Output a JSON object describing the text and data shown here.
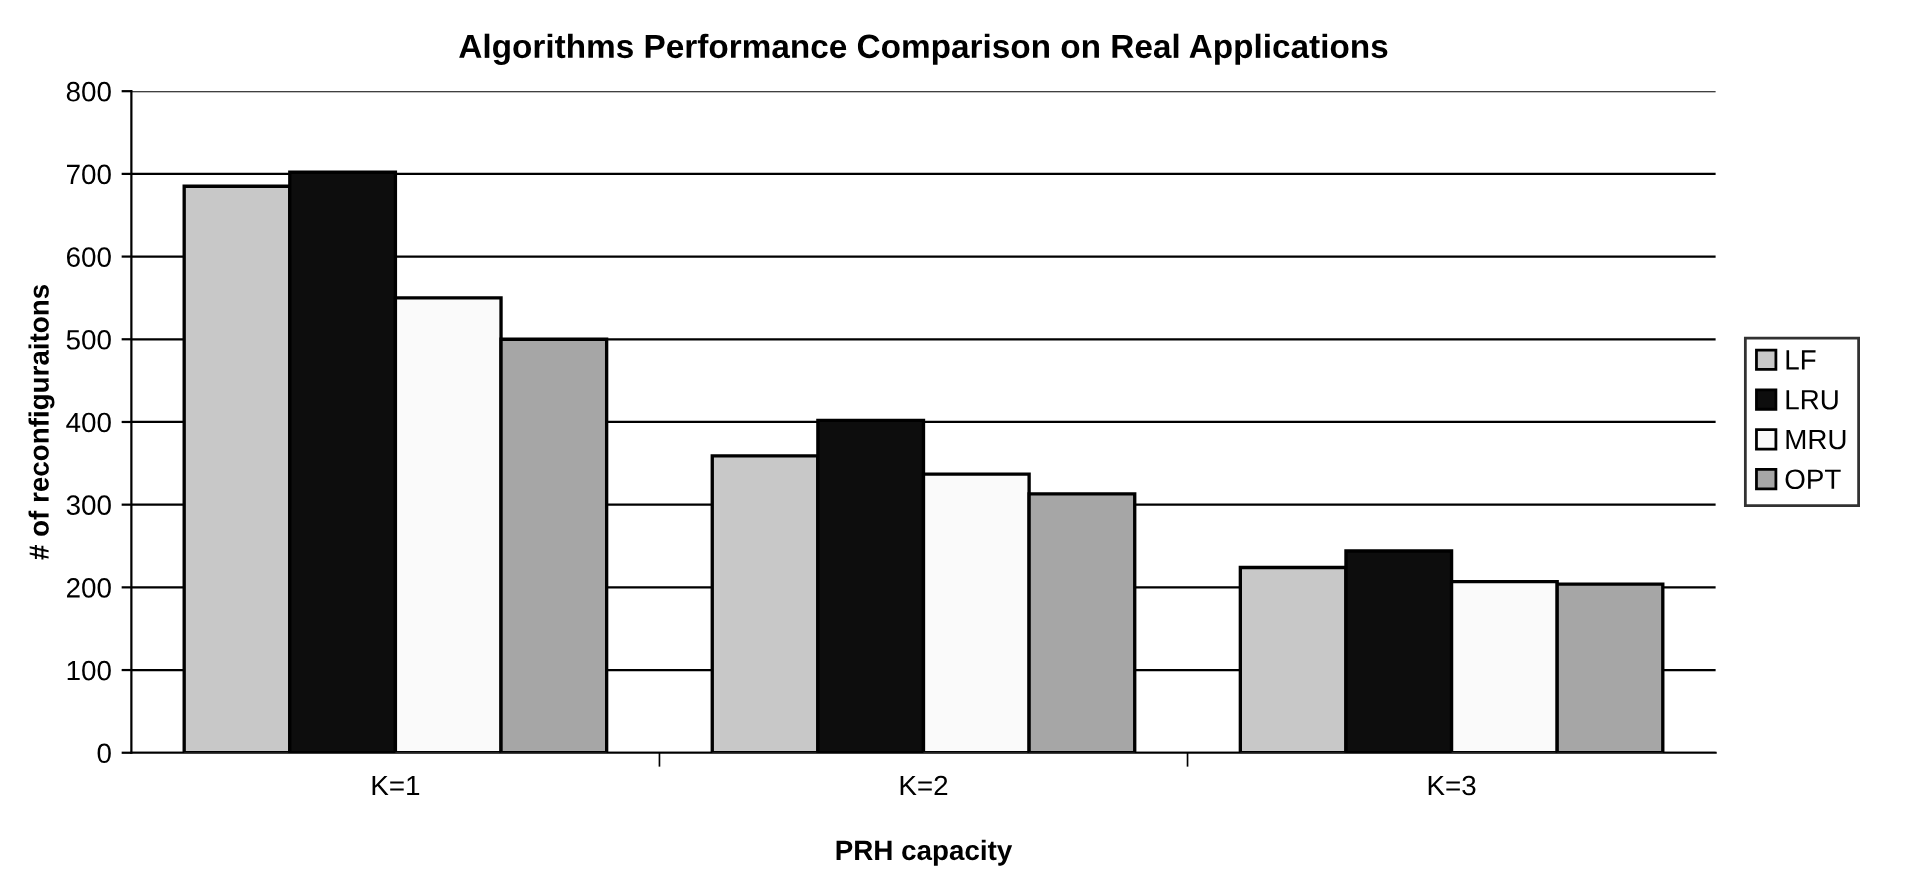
{
  "chart_data": {
    "type": "bar",
    "title": "Algorithms Performance Comparison on Real Applications",
    "xlabel": "PRH capacity",
    "ylabel": "# of reconfiguraitons",
    "categories": [
      "K=1",
      "K=2",
      "K=3"
    ],
    "series": [
      {
        "name": "LF",
        "color": "#c8c8c8",
        "values": [
          685,
          359,
          224
        ]
      },
      {
        "name": "LRU",
        "color": "#0d0d0d",
        "values": [
          702,
          402,
          244
        ]
      },
      {
        "name": "MRU",
        "color": "#fafafa",
        "values": [
          550,
          337,
          207
        ]
      },
      {
        "name": "OPT",
        "color": "#a6a6a6",
        "values": [
          500,
          313,
          204
        ]
      }
    ],
    "ylim": [
      0,
      800
    ],
    "yticks": [
      0,
      100,
      200,
      300,
      400,
      500,
      600,
      700,
      800
    ],
    "grid": "y",
    "legend": "right"
  }
}
